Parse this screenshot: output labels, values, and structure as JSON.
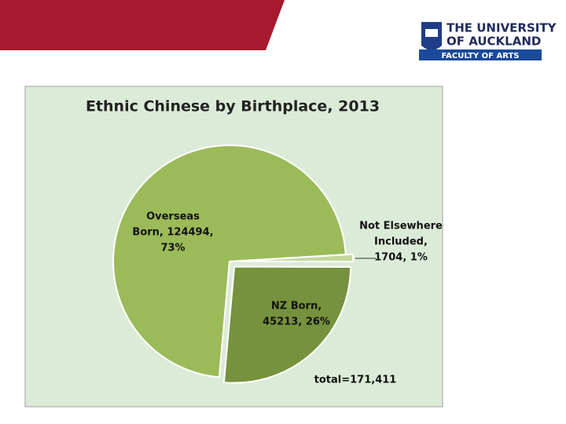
{
  "header": {
    "logo_line1": "THE UNIVERSITY",
    "logo_line2": "OF AUCKLAND",
    "logo_faculty": "FACULTY OF ARTS"
  },
  "chart_data": {
    "type": "pie",
    "title": "Ethnic Chinese by Birthplace, 2013",
    "categories": [
      "Not Elsewhere Included",
      "NZ Born",
      "Overseas Born"
    ],
    "values": [
      1704,
      45213,
      124494
    ],
    "colors": [
      "#c4d79b",
      "#76923c",
      "#9bbb59"
    ],
    "data_labels": [
      [
        "Not Elsewhere",
        "Included,",
        "1704, 1%"
      ],
      [
        "NZ Born,",
        "45213, 26%"
      ],
      [
        "Overseas",
        "Born, 124494,",
        "73%"
      ]
    ],
    "annotation": "total=171,411"
  }
}
